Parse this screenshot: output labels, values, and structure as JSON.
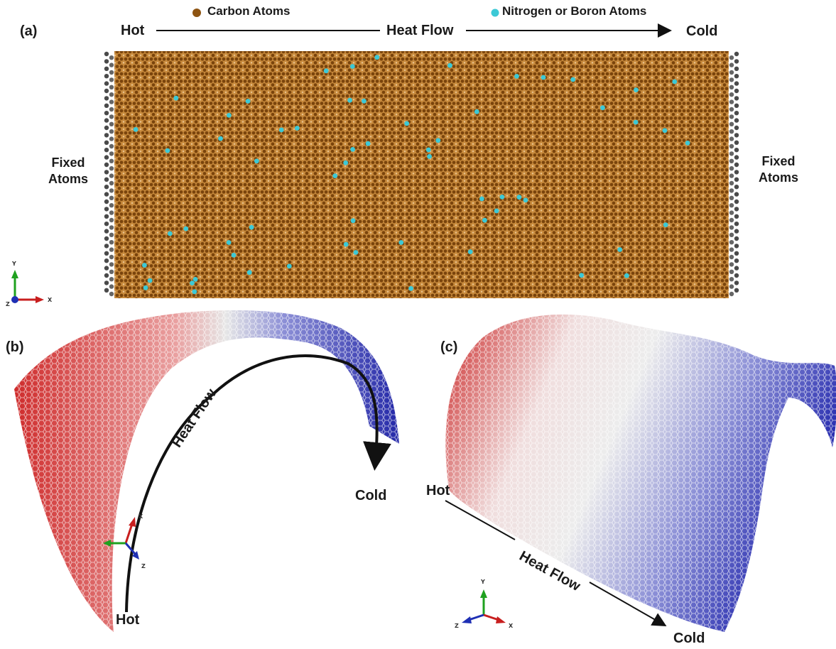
{
  "panel_a": {
    "label": "(a)",
    "legend": {
      "carbon": "Carbon Atoms",
      "dopant": "Nitrogen or Boron Atoms"
    },
    "hot": "Hot",
    "heat_flow": "Heat Flow",
    "cold": "Cold",
    "fixed_left": [
      "Fixed",
      "Atoms"
    ],
    "fixed_right": [
      "Fixed",
      "Atoms"
    ],
    "axes": {
      "y": "Y",
      "x": "X",
      "z": "Z"
    }
  },
  "panel_b": {
    "label": "(b)",
    "heat_flow": "Heat Flow",
    "hot": "Hot",
    "cold": "Cold",
    "axes": {
      "x": "X",
      "z": "Z"
    }
  },
  "panel_c": {
    "label": "(c)",
    "hot": "Hot",
    "heat_flow": "Heat Flow",
    "cold": "Cold",
    "axes": {
      "y": "Y",
      "x": "X",
      "z": "Z"
    }
  },
  "colors": {
    "carbon": "#9a5a13",
    "dopant": "#3cc9d6",
    "fixed": "#555555",
    "hot": "#cc2a2a",
    "mid": "#e6e6e6",
    "cold": "#2a2fb0",
    "arrow": "#111111",
    "axis_y": "#1fa11f",
    "axis_x": "#c81e1e",
    "axis_z": "#1e2fb4"
  }
}
